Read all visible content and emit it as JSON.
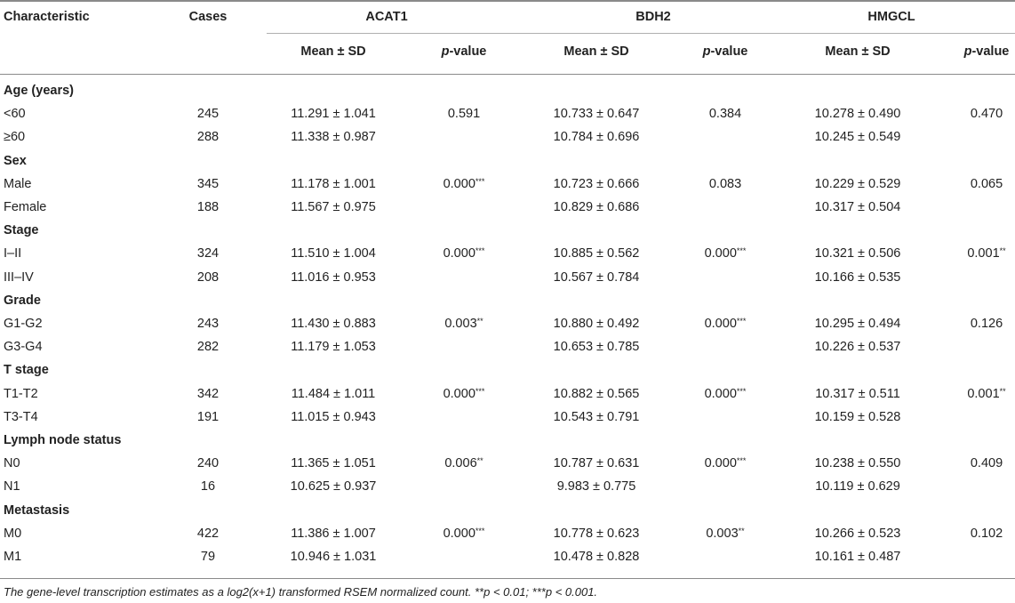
{
  "header": {
    "characteristic": "Characteristic",
    "cases": "Cases",
    "genes": [
      "ACAT1",
      "BDH2",
      "HMGCL"
    ],
    "mean_sd": "Mean ± SD",
    "p_italic": "p",
    "p_rest": "-value"
  },
  "groups": [
    {
      "label": "Age (years)",
      "rows": [
        {
          "label": "<60",
          "cases": "245",
          "acat1_mean": "11.291 ± 1.041",
          "acat1_p": "0.591",
          "acat1_sig": "",
          "bdh2_mean": "10.733 ± 0.647",
          "bdh2_p": "0.384",
          "bdh2_sig": "",
          "hmgcl_mean": "10.278 ± 0.490",
          "hmgcl_p": "0.470",
          "hmgcl_sig": ""
        },
        {
          "label": "≥60",
          "cases": "288",
          "acat1_mean": "11.338 ± 0.987",
          "acat1_p": "",
          "acat1_sig": "",
          "bdh2_mean": "10.784 ± 0.696",
          "bdh2_p": "",
          "bdh2_sig": "",
          "hmgcl_mean": "10.245 ± 0.549",
          "hmgcl_p": "",
          "hmgcl_sig": ""
        }
      ]
    },
    {
      "label": "Sex",
      "rows": [
        {
          "label": "Male",
          "cases": "345",
          "acat1_mean": "11.178 ± 1.001",
          "acat1_p": "0.000",
          "acat1_sig": "***",
          "bdh2_mean": "10.723 ± 0.666",
          "bdh2_p": "0.083",
          "bdh2_sig": "",
          "hmgcl_mean": "10.229 ± 0.529",
          "hmgcl_p": "0.065",
          "hmgcl_sig": ""
        },
        {
          "label": "Female",
          "cases": "188",
          "acat1_mean": "11.567 ± 0.975",
          "acat1_p": "",
          "acat1_sig": "",
          "bdh2_mean": "10.829 ± 0.686",
          "bdh2_p": "",
          "bdh2_sig": "",
          "hmgcl_mean": "10.317 ± 0.504",
          "hmgcl_p": "",
          "hmgcl_sig": ""
        }
      ]
    },
    {
      "label": "Stage",
      "rows": [
        {
          "label": "I–II",
          "cases": "324",
          "acat1_mean": "11.510 ± 1.004",
          "acat1_p": "0.000",
          "acat1_sig": "***",
          "bdh2_mean": "10.885 ± 0.562",
          "bdh2_p": "0.000",
          "bdh2_sig": "***",
          "hmgcl_mean": "10.321 ± 0.506",
          "hmgcl_p": "0.001",
          "hmgcl_sig": "**"
        },
        {
          "label": "III–IV",
          "cases": "208",
          "acat1_mean": "11.016 ± 0.953",
          "acat1_p": "",
          "acat1_sig": "",
          "bdh2_mean": "10.567 ± 0.784",
          "bdh2_p": "",
          "bdh2_sig": "",
          "hmgcl_mean": "10.166 ± 0.535",
          "hmgcl_p": "",
          "hmgcl_sig": ""
        }
      ]
    },
    {
      "label": "Grade",
      "rows": [
        {
          "label": "G1-G2",
          "cases": "243",
          "acat1_mean": "11.430 ± 0.883",
          "acat1_p": "0.003",
          "acat1_sig": "**",
          "bdh2_mean": "10.880 ± 0.492",
          "bdh2_p": "0.000",
          "bdh2_sig": "***",
          "hmgcl_mean": "10.295 ± 0.494",
          "hmgcl_p": "0.126",
          "hmgcl_sig": ""
        },
        {
          "label": "G3-G4",
          "cases": "282",
          "acat1_mean": "11.179 ± 1.053",
          "acat1_p": "",
          "acat1_sig": "",
          "bdh2_mean": "10.653 ± 0.785",
          "bdh2_p": "",
          "bdh2_sig": "",
          "hmgcl_mean": "10.226 ± 0.537",
          "hmgcl_p": "",
          "hmgcl_sig": ""
        }
      ]
    },
    {
      "label": "T stage",
      "rows": [
        {
          "label": "T1-T2",
          "cases": "342",
          "acat1_mean": "11.484 ± 1.011",
          "acat1_p": "0.000",
          "acat1_sig": "***",
          "bdh2_mean": "10.882 ± 0.565",
          "bdh2_p": "0.000",
          "bdh2_sig": "***",
          "hmgcl_mean": "10.317 ± 0.511",
          "hmgcl_p": "0.001",
          "hmgcl_sig": "**"
        },
        {
          "label": "T3-T4",
          "cases": "191",
          "acat1_mean": "11.015 ± 0.943",
          "acat1_p": "",
          "acat1_sig": "",
          "bdh2_mean": "10.543 ± 0.791",
          "bdh2_p": "",
          "bdh2_sig": "",
          "hmgcl_mean": "10.159 ± 0.528",
          "hmgcl_p": "",
          "hmgcl_sig": ""
        }
      ]
    },
    {
      "label": "Lymph node status",
      "rows": [
        {
          "label": "N0",
          "cases": "240",
          "acat1_mean": "11.365 ± 1.051",
          "acat1_p": "0.006",
          "acat1_sig": "**",
          "bdh2_mean": "10.787 ± 0.631",
          "bdh2_p": "0.000",
          "bdh2_sig": "***",
          "hmgcl_mean": "10.238 ± 0.550",
          "hmgcl_p": "0.409",
          "hmgcl_sig": ""
        },
        {
          "label": "N1",
          "cases": "16",
          "acat1_mean": "10.625 ± 0.937",
          "acat1_p": "",
          "acat1_sig": "",
          "bdh2_mean": "9.983 ± 0.775",
          "bdh2_p": "",
          "bdh2_sig": "",
          "hmgcl_mean": "10.119 ± 0.629",
          "hmgcl_p": "",
          "hmgcl_sig": ""
        }
      ]
    },
    {
      "label": "Metastasis",
      "rows": [
        {
          "label": "M0",
          "cases": "422",
          "acat1_mean": "11.386 ± 1.007",
          "acat1_p": "0.000",
          "acat1_sig": "***",
          "bdh2_mean": "10.778 ± 0.623",
          "bdh2_p": "0.003",
          "bdh2_sig": "**",
          "hmgcl_mean": "10.266 ± 0.523",
          "hmgcl_p": "0.102",
          "hmgcl_sig": ""
        },
        {
          "label": "M1",
          "cases": "79",
          "acat1_mean": "10.946 ± 1.031",
          "acat1_p": "",
          "acat1_sig": "",
          "bdh2_mean": "10.478 ± 0.828",
          "bdh2_p": "",
          "bdh2_sig": "",
          "hmgcl_mean": "10.161 ± 0.487",
          "hmgcl_p": "",
          "hmgcl_sig": ""
        }
      ]
    }
  ],
  "footnote": "The gene-level transcription estimates as a log2(x+1) transformed RSEM normalized count. **p < 0.01; ***p < 0.001."
}
